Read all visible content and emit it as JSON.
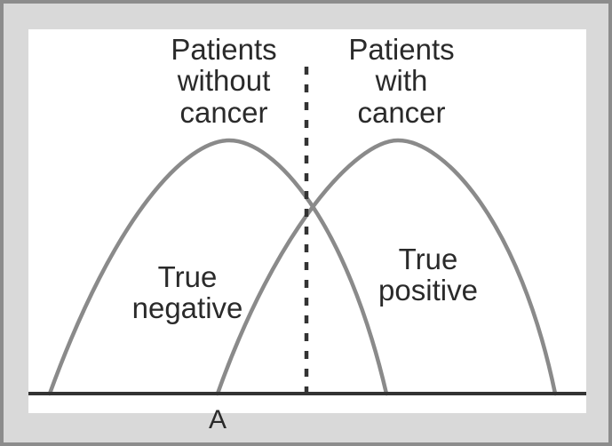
{
  "labels": {
    "without_line1": "Patients",
    "without_line2": "without",
    "without_line3": "cancer",
    "with_line1": "Patients",
    "with_line2": "with",
    "with_line3": "cancer",
    "true_negative_line1": "True",
    "true_negative_line2": "negative",
    "true_positive_line1": "True",
    "true_positive_line2": "positive",
    "threshold": "A"
  },
  "colors": {
    "frame_bg": "#d9d9d9",
    "frame_border": "#8c8c8c",
    "panel_bg": "#ffffff",
    "curve": "#8a8a8a",
    "axis": "#333333",
    "divider": "#333333",
    "text": "#2a2a2a"
  }
}
